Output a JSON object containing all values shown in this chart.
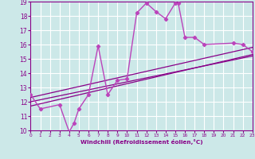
{
  "xlabel": "Windchill (Refroidissement éolien,°C)",
  "bg_color": "#cce8e8",
  "grid_color": "#ffffff",
  "line_color": "#880088",
  "line_color2": "#bb44bb",
  "xlim": [
    0,
    23
  ],
  "ylim": [
    10,
    19
  ],
  "xticks": [
    0,
    1,
    2,
    3,
    4,
    5,
    6,
    7,
    8,
    9,
    10,
    11,
    12,
    13,
    14,
    15,
    16,
    17,
    18,
    19,
    20,
    21,
    22,
    23
  ],
  "yticks": [
    10,
    11,
    12,
    13,
    14,
    15,
    16,
    17,
    18,
    19
  ],
  "curve1_x": [
    0,
    1,
    3,
    4,
    4.5,
    5,
    6,
    7,
    8,
    9,
    10,
    11,
    12,
    13,
    14,
    15,
    15.3,
    16,
    17,
    18,
    21,
    22,
    23
  ],
  "curve1_y": [
    12.5,
    11.5,
    11.8,
    9.9,
    10.5,
    11.5,
    12.5,
    15.9,
    12.5,
    13.5,
    13.6,
    18.2,
    18.9,
    18.3,
    17.8,
    18.9,
    18.9,
    16.5,
    16.5,
    16.0,
    16.1,
    16.0,
    15.5
  ],
  "line1_x": [
    0,
    23
  ],
  "line1_y": [
    12.0,
    15.2
  ],
  "line2_x": [
    0,
    23
  ],
  "line2_y": [
    11.7,
    15.3
  ],
  "line3_x": [
    0,
    23
  ],
  "line3_y": [
    12.3,
    15.8
  ]
}
